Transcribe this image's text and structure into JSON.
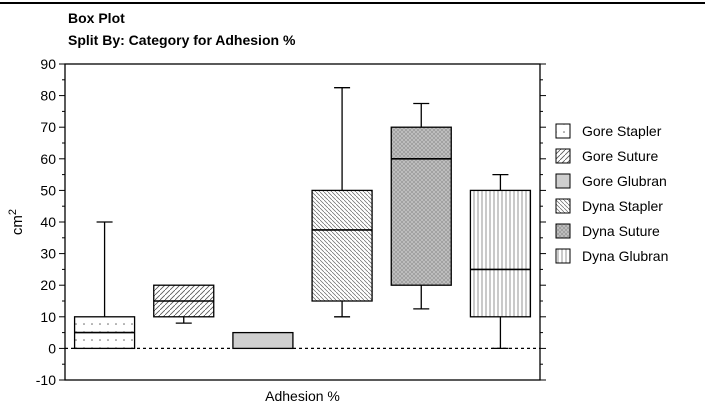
{
  "chart_data": {
    "type": "box",
    "title": "Box Plot",
    "subtitle": "Split By: Category for Adhesion %",
    "xlabel": "Adhesion %",
    "ylabel": "cm",
    "ylabel_sup": "2",
    "ylim": [
      -10,
      90
    ],
    "yticks": [
      -10,
      0,
      10,
      20,
      30,
      40,
      50,
      60,
      70,
      80,
      90
    ],
    "reference_line": 0,
    "legend_position": "right",
    "series": [
      {
        "name": "Gore Stapler",
        "min": 0,
        "q1": 0,
        "median": 5,
        "q3": 10,
        "max": 40,
        "pattern": "dot",
        "fill": "#ffffff"
      },
      {
        "name": "Gore Suture",
        "min": 8,
        "q1": 10,
        "median": 15,
        "q3": 20,
        "max": 20,
        "pattern": "diag",
        "fill": "#e6e6e6"
      },
      {
        "name": "Gore Glubran",
        "min": 0,
        "q1": 0,
        "median": 5,
        "q3": 5,
        "max": 5,
        "pattern": "solid",
        "fill": "#cccccc"
      },
      {
        "name": "Dyna Stapler",
        "min": 10,
        "q1": 15,
        "median": 37.5,
        "q3": 50,
        "max": 82.5,
        "pattern": "diag-fine",
        "fill": "#eeeeee"
      },
      {
        "name": "Dyna Suture",
        "min": 12.5,
        "q1": 20,
        "median": 60,
        "q3": 70,
        "max": 77.5,
        "pattern": "cross",
        "fill": "#c8c8c8"
      },
      {
        "name": "Dyna Glubran",
        "min": 0,
        "q1": 10,
        "median": 25,
        "q3": 50,
        "max": 55,
        "pattern": "vert",
        "fill": "#f2f2f2"
      }
    ]
  }
}
